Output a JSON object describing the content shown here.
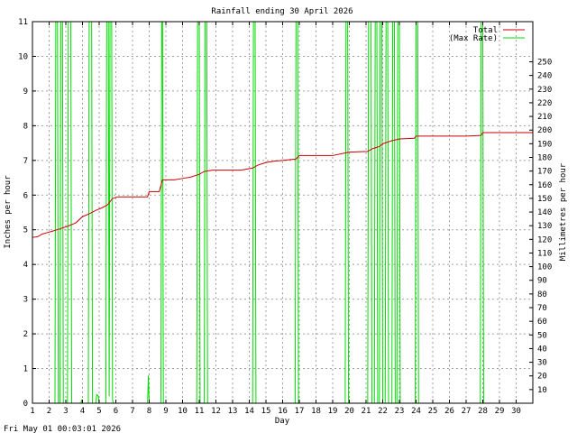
{
  "chart_data": {
    "type": "line",
    "title": "Rainfall ending 30 April 2026",
    "xlabel": "Day",
    "ylabel": "Inches per hour",
    "y2label": "Millimetres per hour",
    "footer": "Fri May 01 00:03:01 2026",
    "xlim": [
      1,
      31
    ],
    "ylim": [
      0,
      11
    ],
    "y2lim": [
      0,
      279.4
    ],
    "x_ticks": [
      1,
      2,
      3,
      4,
      5,
      6,
      7,
      8,
      9,
      10,
      11,
      12,
      13,
      14,
      15,
      16,
      17,
      18,
      19,
      20,
      21,
      22,
      23,
      24,
      25,
      26,
      27,
      28,
      29,
      30
    ],
    "y_ticks": [
      0,
      1,
      2,
      3,
      4,
      5,
      6,
      7,
      8,
      9,
      10,
      11
    ],
    "y2_ticks": [
      10,
      20,
      30,
      40,
      50,
      60,
      70,
      80,
      90,
      100,
      110,
      120,
      130,
      140,
      150,
      160,
      170,
      180,
      190,
      200,
      210,
      220,
      230,
      240,
      250
    ],
    "grid": true,
    "legend_position": "top-right",
    "series": [
      {
        "name": "Total",
        "color": "#cc0000",
        "points": [
          [
            1.0,
            4.78
          ],
          [
            1.3,
            4.8
          ],
          [
            1.6,
            4.88
          ],
          [
            1.9,
            4.92
          ],
          [
            2.2,
            4.96
          ],
          [
            2.6,
            5.02
          ],
          [
            3.1,
            5.1
          ],
          [
            3.6,
            5.2
          ],
          [
            4.0,
            5.38
          ],
          [
            4.4,
            5.46
          ],
          [
            4.8,
            5.56
          ],
          [
            5.2,
            5.64
          ],
          [
            5.5,
            5.72
          ],
          [
            5.8,
            5.9
          ],
          [
            6.1,
            5.95
          ],
          [
            7.0,
            5.95
          ],
          [
            7.9,
            5.95
          ],
          [
            8.0,
            6.1
          ],
          [
            8.6,
            6.1
          ],
          [
            8.8,
            6.44
          ],
          [
            9.5,
            6.44
          ],
          [
            10.0,
            6.48
          ],
          [
            10.5,
            6.52
          ],
          [
            11.0,
            6.6
          ],
          [
            11.3,
            6.68
          ],
          [
            11.8,
            6.72
          ],
          [
            12.5,
            6.72
          ],
          [
            13.5,
            6.72
          ],
          [
            14.2,
            6.78
          ],
          [
            14.5,
            6.86
          ],
          [
            15.0,
            6.94
          ],
          [
            15.5,
            6.98
          ],
          [
            16.0,
            7.0
          ],
          [
            16.8,
            7.04
          ],
          [
            17.0,
            7.14
          ],
          [
            18.0,
            7.14
          ],
          [
            19.0,
            7.14
          ],
          [
            19.6,
            7.2
          ],
          [
            20.0,
            7.24
          ],
          [
            21.1,
            7.26
          ],
          [
            21.4,
            7.34
          ],
          [
            21.8,
            7.4
          ],
          [
            22.0,
            7.48
          ],
          [
            22.5,
            7.56
          ],
          [
            23.0,
            7.62
          ],
          [
            23.9,
            7.64
          ],
          [
            24.0,
            7.7
          ],
          [
            25.0,
            7.7
          ],
          [
            26.0,
            7.7
          ],
          [
            27.0,
            7.7
          ],
          [
            27.9,
            7.72
          ],
          [
            28.0,
            7.8
          ],
          [
            29.0,
            7.8
          ],
          [
            30.0,
            7.8
          ],
          [
            31.0,
            7.8
          ]
        ]
      },
      {
        "name": "(Max Rate)",
        "color": "#00dd00",
        "points": [
          [
            1.0,
            0
          ],
          [
            2.35,
            0
          ],
          [
            2.4,
            11
          ],
          [
            2.5,
            11
          ],
          [
            2.55,
            0
          ],
          [
            2.65,
            0
          ],
          [
            2.7,
            11
          ],
          [
            2.8,
            11
          ],
          [
            2.85,
            0
          ],
          [
            3.1,
            0
          ],
          [
            3.15,
            11
          ],
          [
            3.3,
            11
          ],
          [
            3.35,
            0
          ],
          [
            3.9,
            0
          ],
          [
            3.95,
            0.1
          ],
          [
            4.0,
            0
          ],
          [
            4.35,
            0
          ],
          [
            4.4,
            11
          ],
          [
            4.55,
            11
          ],
          [
            4.6,
            0
          ],
          [
            4.8,
            0
          ],
          [
            4.85,
            0.25
          ],
          [
            4.95,
            0.2
          ],
          [
            5.0,
            0
          ],
          [
            5.4,
            0
          ],
          [
            5.45,
            11
          ],
          [
            5.55,
            11
          ],
          [
            5.6,
            0.2
          ],
          [
            5.65,
            11
          ],
          [
            5.75,
            11
          ],
          [
            5.8,
            0.1
          ],
          [
            5.85,
            0
          ],
          [
            7.9,
            0
          ],
          [
            7.95,
            0.8
          ],
          [
            8.0,
            0
          ],
          [
            8.7,
            0
          ],
          [
            8.75,
            11
          ],
          [
            8.8,
            11
          ],
          [
            8.85,
            0
          ],
          [
            10.85,
            0
          ],
          [
            10.9,
            11
          ],
          [
            11.0,
            11
          ],
          [
            11.05,
            0
          ],
          [
            11.3,
            0
          ],
          [
            11.35,
            11
          ],
          [
            11.45,
            11
          ],
          [
            11.5,
            0
          ],
          [
            14.2,
            0
          ],
          [
            14.25,
            11
          ],
          [
            14.35,
            11
          ],
          [
            14.4,
            0
          ],
          [
            16.75,
            0
          ],
          [
            16.8,
            11
          ],
          [
            16.9,
            11
          ],
          [
            16.95,
            0
          ],
          [
            19.75,
            0
          ],
          [
            19.8,
            11
          ],
          [
            19.9,
            11
          ],
          [
            19.95,
            0
          ],
          [
            21.1,
            0
          ],
          [
            21.15,
            11
          ],
          [
            21.3,
            11
          ],
          [
            21.35,
            0
          ],
          [
            21.5,
            0
          ],
          [
            21.55,
            11
          ],
          [
            21.65,
            11
          ],
          [
            21.7,
            0
          ],
          [
            21.8,
            0
          ],
          [
            21.85,
            11
          ],
          [
            21.95,
            11
          ],
          [
            22.0,
            0
          ],
          [
            22.15,
            0
          ],
          [
            22.2,
            11
          ],
          [
            22.3,
            11
          ],
          [
            22.35,
            0
          ],
          [
            22.55,
            0
          ],
          [
            22.6,
            11
          ],
          [
            22.7,
            11
          ],
          [
            22.75,
            0
          ],
          [
            22.85,
            0
          ],
          [
            22.9,
            11
          ],
          [
            23.0,
            11
          ],
          [
            23.05,
            0
          ],
          [
            23.95,
            0
          ],
          [
            24.0,
            11
          ],
          [
            24.1,
            11
          ],
          [
            24.15,
            0
          ],
          [
            27.85,
            0
          ],
          [
            27.9,
            11
          ],
          [
            28.0,
            11
          ],
          [
            28.05,
            0
          ],
          [
            31.0,
            0
          ]
        ]
      }
    ]
  }
}
